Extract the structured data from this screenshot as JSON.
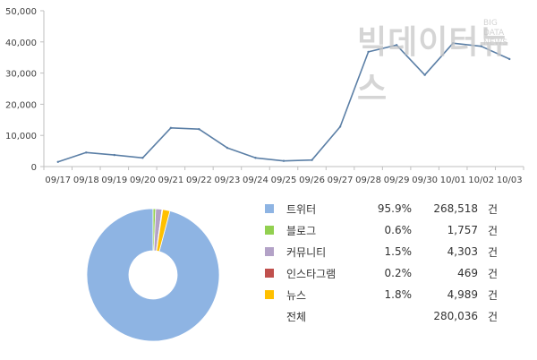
{
  "chart_data": [
    {
      "type": "line",
      "x": [
        "09/17",
        "09/18",
        "09/19",
        "09/20",
        "09/21",
        "09/22",
        "09/23",
        "09/24",
        "09/25",
        "09/26",
        "09/27",
        "09/28",
        "09/29",
        "09/30",
        "10/01",
        "10/02",
        "10/03"
      ],
      "series": [
        {
          "values": [
            1500,
            4500,
            3700,
            2800,
            12400,
            12000,
            6000,
            2800,
            1800,
            2100,
            12800,
            36800,
            39000,
            29400,
            39600,
            38600,
            34500
          ]
        }
      ],
      "yticks": [
        "0",
        "10,000",
        "20,000",
        "30,000",
        "40,000",
        "50,000"
      ],
      "ylim": [
        0,
        50000
      ],
      "grid": false,
      "line_color": "#5b7fa6"
    },
    {
      "type": "pie",
      "donut": true,
      "slices": [
        {
          "name": "트위터",
          "pct": "95.9%",
          "count": "268,518",
          "value": 268518,
          "color": "#8eb4e3"
        },
        {
          "name": "블로그",
          "pct": "0.6%",
          "count": "1,757",
          "value": 1757,
          "color": "#92d050"
        },
        {
          "name": "커뮤니티",
          "pct": "1.5%",
          "count": "4,303",
          "value": 4303,
          "color": "#b3a2c7"
        },
        {
          "name": "인스타그램",
          "pct": "0.2%",
          "count": "469",
          "value": 469,
          "color": "#c0504d"
        },
        {
          "name": "뉴스",
          "pct": "1.8%",
          "count": "4,989",
          "value": 4989,
          "color": "#ffc000"
        }
      ],
      "total_label": "전체",
      "total_count": "280,036",
      "unit": "건"
    }
  ],
  "watermark": {
    "main": "빅데이터뉴스",
    "sub": [
      "BIG",
      "DATA",
      "NEWS"
    ]
  }
}
